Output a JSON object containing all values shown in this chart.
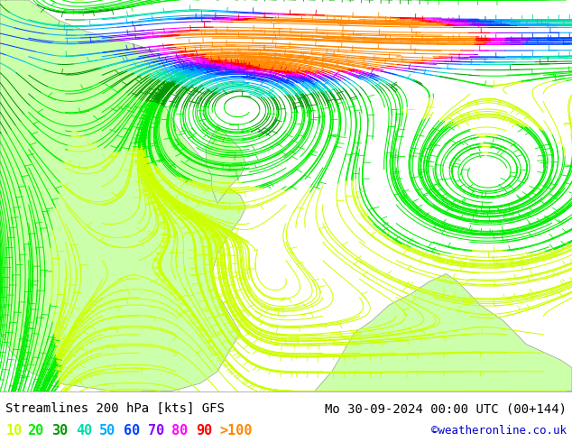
{
  "title_left": "Streamlines 200 hPa [kts] GFS",
  "title_right": "Mo 30-09-2024 00:00 UTC (00+144)",
  "credit": "©weatheronline.co.uk",
  "legend_values": [
    "10",
    "20",
    "30",
    "40",
    "50",
    "60",
    "70",
    "80",
    "90",
    ">100"
  ],
  "legend_colors": [
    "#ccff00",
    "#00ee00",
    "#009900",
    "#00ddaa",
    "#00aaff",
    "#0044ff",
    "#8800ff",
    "#ff00ff",
    "#ff0000",
    "#ff8800"
  ],
  "bg_color": "#c8c8c8",
  "ocean_color": "#d8d8d8",
  "land_color": "#ccffaa",
  "bottom_bar_color": "#ffffff",
  "title_fontsize": 10,
  "legend_fontsize": 11,
  "credit_color": "#0000cc",
  "title_color": "#000000",
  "fig_width": 6.34,
  "fig_height": 4.9,
  "dpi": 100
}
